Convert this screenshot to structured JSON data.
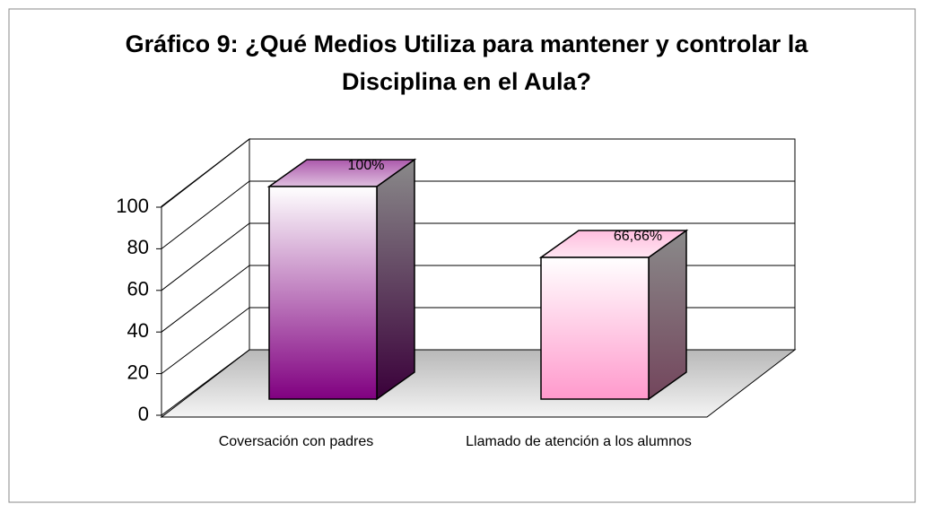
{
  "chart_data": {
    "type": "bar3d",
    "title": "Gráfico 9: ¿Qué Medios Utiliza para mantener y controlar la Disciplina en el Aula?",
    "categories": [
      "Coversación con padres",
      "Llamado de atención a los alumnos"
    ],
    "values": [
      100,
      66.66
    ],
    "value_labels": [
      "100%",
      "66,66%"
    ],
    "colors": [
      "#800080",
      "#ff99cc"
    ],
    "ylim": [
      0,
      100
    ],
    "yticks": [
      0,
      20,
      40,
      60,
      80,
      100
    ],
    "grid": true
  }
}
